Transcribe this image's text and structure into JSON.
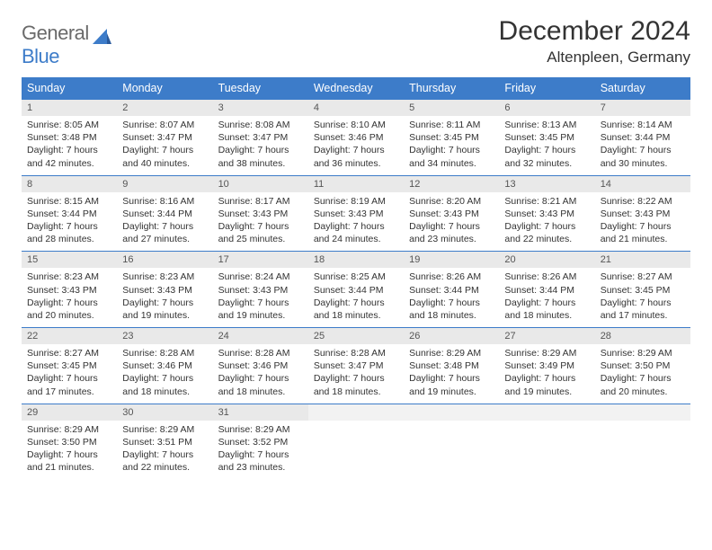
{
  "logo": {
    "text_general": "General",
    "text_blue": "Blue"
  },
  "title": "December 2024",
  "location": "Altenpleen, Germany",
  "colors": {
    "header_bg": "#3d7cc9",
    "header_text": "#ffffff",
    "daynum_bg": "#e9e9e9",
    "rule": "#3d7cc9",
    "body_text": "#333333",
    "logo_gray": "#6a6a6a",
    "logo_blue": "#3d7cc9"
  },
  "weekdays": [
    "Sunday",
    "Monday",
    "Tuesday",
    "Wednesday",
    "Thursday",
    "Friday",
    "Saturday"
  ],
  "weeks": [
    [
      {
        "n": "1",
        "sr": "8:05 AM",
        "ss": "3:48 PM",
        "dl": "7 hours and 42 minutes."
      },
      {
        "n": "2",
        "sr": "8:07 AM",
        "ss": "3:47 PM",
        "dl": "7 hours and 40 minutes."
      },
      {
        "n": "3",
        "sr": "8:08 AM",
        "ss": "3:47 PM",
        "dl": "7 hours and 38 minutes."
      },
      {
        "n": "4",
        "sr": "8:10 AM",
        "ss": "3:46 PM",
        "dl": "7 hours and 36 minutes."
      },
      {
        "n": "5",
        "sr": "8:11 AM",
        "ss": "3:45 PM",
        "dl": "7 hours and 34 minutes."
      },
      {
        "n": "6",
        "sr": "8:13 AM",
        "ss": "3:45 PM",
        "dl": "7 hours and 32 minutes."
      },
      {
        "n": "7",
        "sr": "8:14 AM",
        "ss": "3:44 PM",
        "dl": "7 hours and 30 minutes."
      }
    ],
    [
      {
        "n": "8",
        "sr": "8:15 AM",
        "ss": "3:44 PM",
        "dl": "7 hours and 28 minutes."
      },
      {
        "n": "9",
        "sr": "8:16 AM",
        "ss": "3:44 PM",
        "dl": "7 hours and 27 minutes."
      },
      {
        "n": "10",
        "sr": "8:17 AM",
        "ss": "3:43 PM",
        "dl": "7 hours and 25 minutes."
      },
      {
        "n": "11",
        "sr": "8:19 AM",
        "ss": "3:43 PM",
        "dl": "7 hours and 24 minutes."
      },
      {
        "n": "12",
        "sr": "8:20 AM",
        "ss": "3:43 PM",
        "dl": "7 hours and 23 minutes."
      },
      {
        "n": "13",
        "sr": "8:21 AM",
        "ss": "3:43 PM",
        "dl": "7 hours and 22 minutes."
      },
      {
        "n": "14",
        "sr": "8:22 AM",
        "ss": "3:43 PM",
        "dl": "7 hours and 21 minutes."
      }
    ],
    [
      {
        "n": "15",
        "sr": "8:23 AM",
        "ss": "3:43 PM",
        "dl": "7 hours and 20 minutes."
      },
      {
        "n": "16",
        "sr": "8:23 AM",
        "ss": "3:43 PM",
        "dl": "7 hours and 19 minutes."
      },
      {
        "n": "17",
        "sr": "8:24 AM",
        "ss": "3:43 PM",
        "dl": "7 hours and 19 minutes."
      },
      {
        "n": "18",
        "sr": "8:25 AM",
        "ss": "3:44 PM",
        "dl": "7 hours and 18 minutes."
      },
      {
        "n": "19",
        "sr": "8:26 AM",
        "ss": "3:44 PM",
        "dl": "7 hours and 18 minutes."
      },
      {
        "n": "20",
        "sr": "8:26 AM",
        "ss": "3:44 PM",
        "dl": "7 hours and 18 minutes."
      },
      {
        "n": "21",
        "sr": "8:27 AM",
        "ss": "3:45 PM",
        "dl": "7 hours and 17 minutes."
      }
    ],
    [
      {
        "n": "22",
        "sr": "8:27 AM",
        "ss": "3:45 PM",
        "dl": "7 hours and 17 minutes."
      },
      {
        "n": "23",
        "sr": "8:28 AM",
        "ss": "3:46 PM",
        "dl": "7 hours and 18 minutes."
      },
      {
        "n": "24",
        "sr": "8:28 AM",
        "ss": "3:46 PM",
        "dl": "7 hours and 18 minutes."
      },
      {
        "n": "25",
        "sr": "8:28 AM",
        "ss": "3:47 PM",
        "dl": "7 hours and 18 minutes."
      },
      {
        "n": "26",
        "sr": "8:29 AM",
        "ss": "3:48 PM",
        "dl": "7 hours and 19 minutes."
      },
      {
        "n": "27",
        "sr": "8:29 AM",
        "ss": "3:49 PM",
        "dl": "7 hours and 19 minutes."
      },
      {
        "n": "28",
        "sr": "8:29 AM",
        "ss": "3:50 PM",
        "dl": "7 hours and 20 minutes."
      }
    ],
    [
      {
        "n": "29",
        "sr": "8:29 AM",
        "ss": "3:50 PM",
        "dl": "7 hours and 21 minutes."
      },
      {
        "n": "30",
        "sr": "8:29 AM",
        "ss": "3:51 PM",
        "dl": "7 hours and 22 minutes."
      },
      {
        "n": "31",
        "sr": "8:29 AM",
        "ss": "3:52 PM",
        "dl": "7 hours and 23 minutes."
      },
      null,
      null,
      null,
      null
    ]
  ],
  "labels": {
    "sunrise": "Sunrise:",
    "sunset": "Sunset:",
    "daylight": "Daylight:"
  }
}
